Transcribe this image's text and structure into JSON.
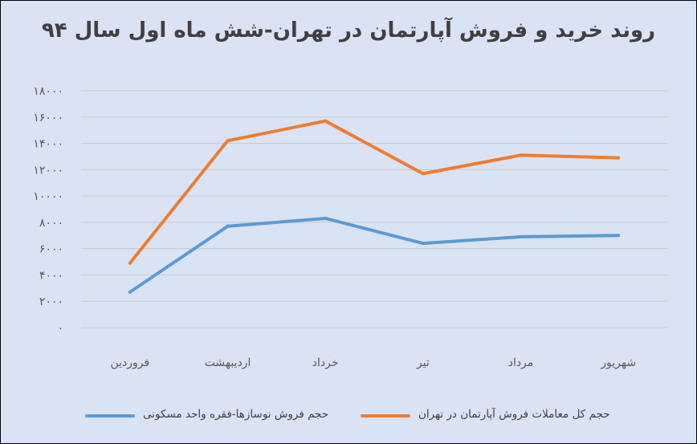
{
  "chart_data": {
    "type": "line",
    "title": "روند خرید و فروش آپارتمان در تهران-شش ماه اول سال ۹۴",
    "categories": [
      "فروردین",
      "اردیبهشت",
      "خرداد",
      "تیر",
      "مرداد",
      "شهریور"
    ],
    "series": [
      {
        "name": "حجم فروش نوسازها-فقره واحد مسکونی",
        "color": "#5b9bd5",
        "values": [
          2700,
          7700,
          8300,
          6400,
          6900,
          7000
        ]
      },
      {
        "name": "حجم کل معاملات فروش آپارتمان در تهران",
        "color": "#ed7d31",
        "values": [
          4900,
          14200,
          15700,
          11700,
          13100,
          12900
        ]
      }
    ],
    "ylim": [
      0,
      18000
    ],
    "yticks": [
      "۰",
      "۲۰۰۰",
      "۴۰۰۰",
      "۶۰۰۰",
      "۸۰۰۰",
      "۱۰۰۰۰",
      "۱۲۰۰۰",
      "۱۴۰۰۰",
      "۱۶۰۰۰",
      "۱۸۰۰۰"
    ],
    "grid": true,
    "legend_position": "bottom"
  }
}
